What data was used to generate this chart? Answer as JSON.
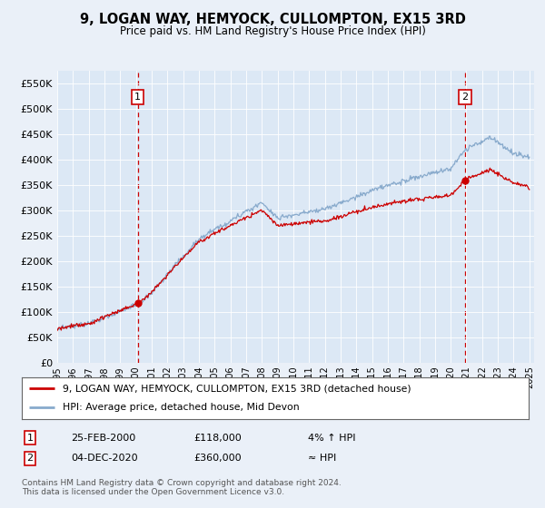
{
  "title": "9, LOGAN WAY, HEMYOCK, CULLOMPTON, EX15 3RD",
  "subtitle": "Price paid vs. HM Land Registry's House Price Index (HPI)",
  "background_color": "#eaf0f8",
  "plot_bg_color": "#dce8f5",
  "ylim": [
    0,
    575000
  ],
  "yticks": [
    0,
    50000,
    100000,
    150000,
    200000,
    250000,
    300000,
    350000,
    400000,
    450000,
    500000,
    550000
  ],
  "ytick_labels": [
    "£0",
    "£50K",
    "£100K",
    "£150K",
    "£200K",
    "£250K",
    "£300K",
    "£350K",
    "£400K",
    "£450K",
    "£500K",
    "£550K"
  ],
  "sale1_date": 2000.12,
  "sale1_price": 118000,
  "sale1_label": "1",
  "sale2_date": 2020.92,
  "sale2_price": 360000,
  "sale2_label": "2",
  "legend_line1": "9, LOGAN WAY, HEMYOCK, CULLOMPTON, EX15 3RD (detached house)",
  "legend_line2": "HPI: Average price, detached house, Mid Devon",
  "table_row1": [
    "1",
    "25-FEB-2000",
    "£118,000",
    "4% ↑ HPI"
  ],
  "table_row2": [
    "2",
    "04-DEC-2020",
    "£360,000",
    "≈ HPI"
  ],
  "footnote": "Contains HM Land Registry data © Crown copyright and database right 2024.\nThis data is licensed under the Open Government Licence v3.0.",
  "line_color_red": "#cc0000",
  "line_color_blue": "#88aacc",
  "grid_color": "#ffffff",
  "vline_color": "#cc0000",
  "xlim_start": 1995,
  "xlim_end": 2025
}
